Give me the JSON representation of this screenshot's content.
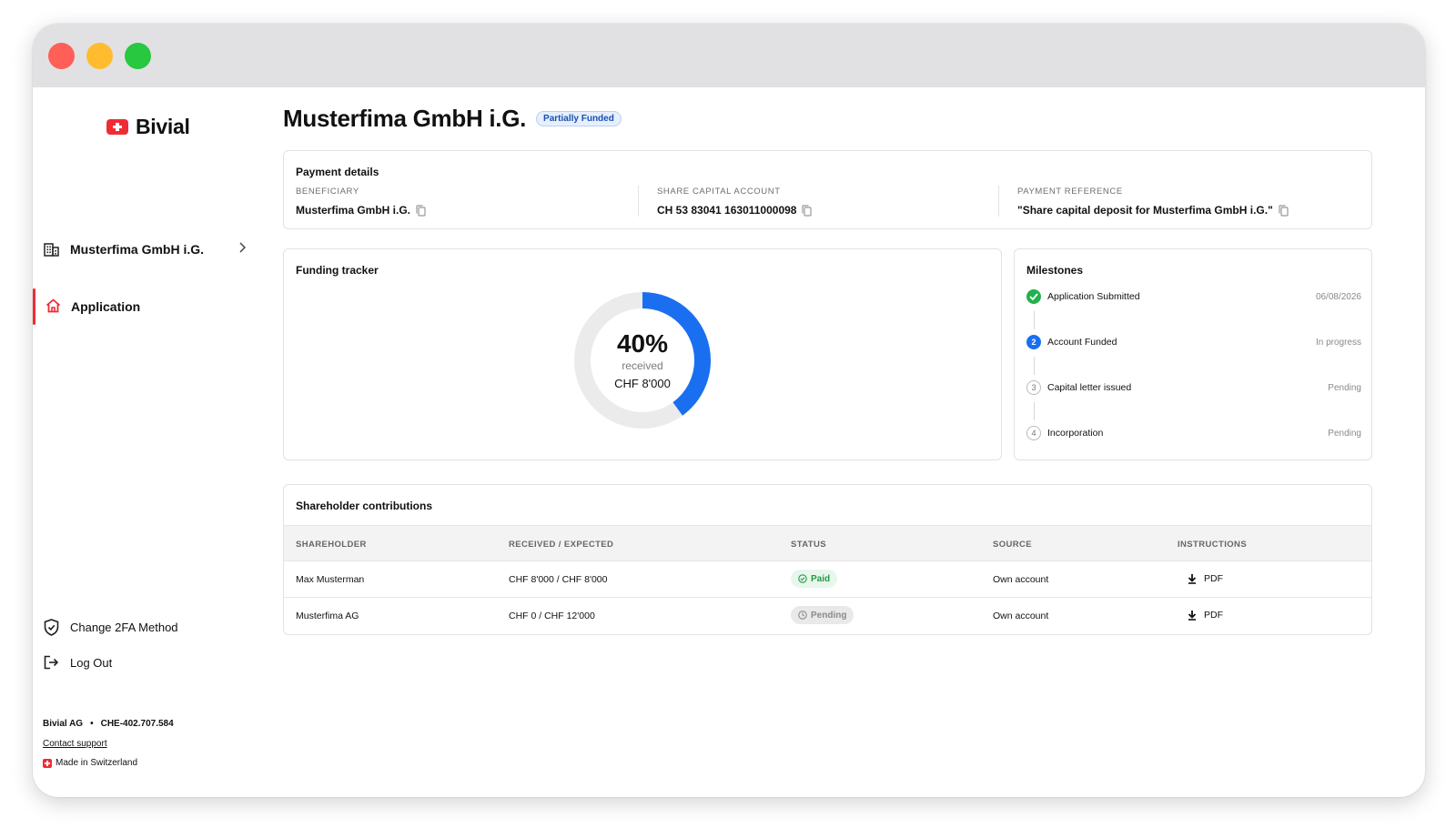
{
  "colors": {
    "brand_red": "#ef2c35",
    "accent_blue": "#1a6ff0",
    "success_green": "#22b14c"
  },
  "sidebar": {
    "brand": "Bivial",
    "company": "Musterfima GmbH i.G.",
    "nav_active": "Application",
    "change_2fa": "Change 2FA Method",
    "logout": "Log Out",
    "footer": {
      "company_name": "Bivial AG",
      "company_id": "CHE-402.707.584",
      "support": "Contact support",
      "made_in": "Made in Switzerland"
    }
  },
  "header": {
    "title": "Musterfima GmbH i.G.",
    "status": "Partially Funded"
  },
  "payment": {
    "title": "Payment details",
    "beneficiary_label": "BENEFICIARY",
    "beneficiary_value": "Musterfima GmbH i.G.",
    "account_label": "SHARE CAPITAL ACCOUNT",
    "account_value": "CH 53 83041 163011000098",
    "reference_label": "PAYMENT REFERENCE",
    "reference_value": "\"Share capital deposit for Musterfima GmbH i.G.\""
  },
  "tracker": {
    "title": "Funding tracker",
    "percent": "40%",
    "percent_value": 40,
    "caption": "received",
    "amount": "CHF 8'000"
  },
  "milestones": {
    "title": "Milestones",
    "items": [
      {
        "number": "",
        "label": "Application Submitted",
        "status": "06/08/2026",
        "state": "done"
      },
      {
        "number": "2",
        "label": "Account Funded",
        "status": "In progress",
        "state": "active"
      },
      {
        "number": "3",
        "label": "Capital letter issued",
        "status": "Pending",
        "state": "todo"
      },
      {
        "number": "4",
        "label": "Incorporation",
        "status": "Pending",
        "state": "todo"
      }
    ]
  },
  "contributions": {
    "title": "Shareholder contributions",
    "columns": [
      "SHAREHOLDER",
      "RECEIVED / EXPECTED",
      "STATUS",
      "SOURCE",
      "INSTRUCTIONS"
    ],
    "rows": [
      {
        "shareholder": "Max Musterman",
        "amount": "CHF 8'000 / CHF 8'000",
        "status": "Paid",
        "source": "Own account",
        "instructions": "PDF"
      },
      {
        "shareholder": "Musterfima AG",
        "amount": "CHF 0 / CHF 12'000",
        "status": "Pending",
        "source": "Own account",
        "instructions": "PDF"
      }
    ]
  }
}
